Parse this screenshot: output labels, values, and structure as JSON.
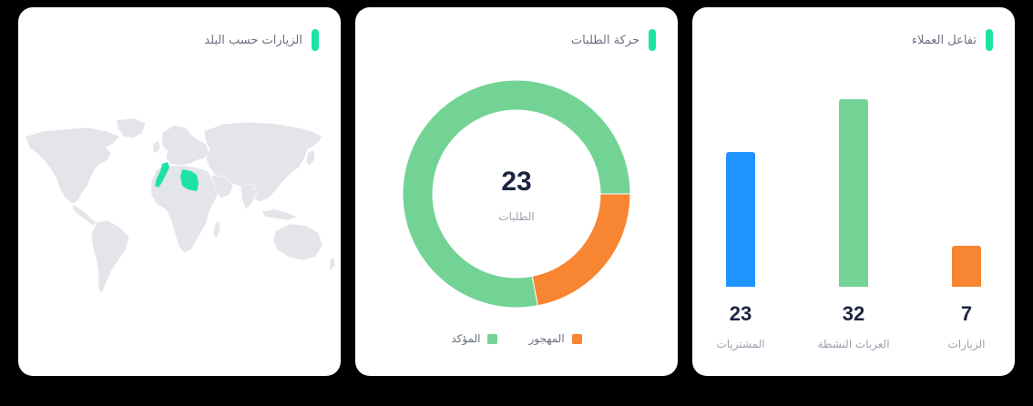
{
  "colors": {
    "accent": "#1de2a6",
    "confirmed": "#72d395",
    "abandoned": "#f88531",
    "blue": "#1f93ff",
    "map_land": "#e3e5ea",
    "map_highlight": "#1de2a6"
  },
  "map_card": {
    "title": "الزيارات حسب البلد",
    "highlighted_countries": [
      "Morocco",
      "Libya"
    ]
  },
  "orders_card": {
    "title": "حركة الطلبات",
    "total_value": "23",
    "total_label": "الطلبات",
    "legend": {
      "abandoned": "المهجور",
      "confirmed": "المؤكد"
    }
  },
  "engagement_card": {
    "title": "تفاعل العملاء",
    "stats": [
      {
        "value": "7",
        "label": "الزيارات"
      },
      {
        "value": "32",
        "label": "العربات النشطة"
      },
      {
        "value": "23",
        "label": "المشتريات"
      }
    ]
  },
  "chart_data": [
    {
      "type": "pie",
      "title": "حركة الطلبات",
      "categories": [
        "المؤكد",
        "المهجور"
      ],
      "values": [
        78,
        22
      ],
      "center_value": 23,
      "center_label": "الطلبات"
    },
    {
      "type": "bar",
      "title": "تفاعل العملاء",
      "categories": [
        "الزيارات",
        "العربات النشطة",
        "المشتريات"
      ],
      "values": [
        7,
        32,
        23
      ],
      "colors": [
        "#f88531",
        "#72d395",
        "#1f93ff"
      ],
      "ylim": [
        0,
        32
      ]
    }
  ]
}
